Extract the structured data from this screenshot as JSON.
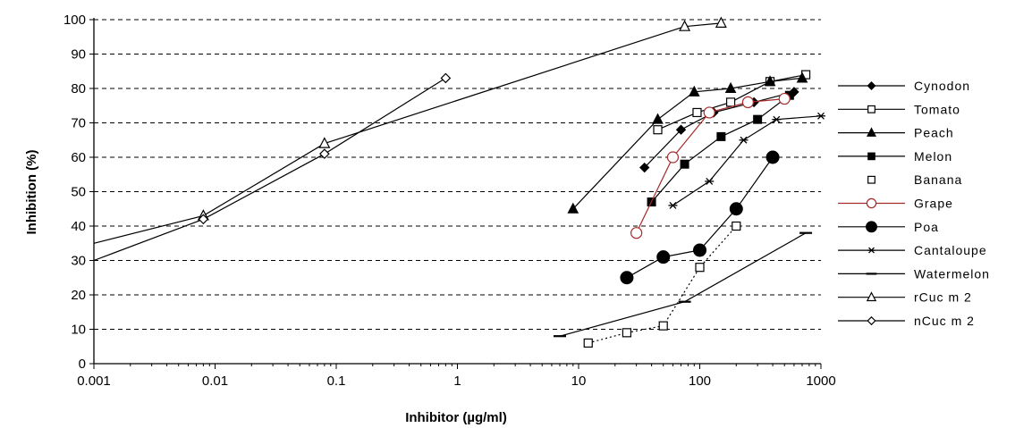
{
  "chart_data": {
    "type": "scatter",
    "title": "",
    "xlabel": "Inhibitor (µg/ml)",
    "ylabel": "Inhibition (%)",
    "x_scale": "log",
    "xlim": [
      0.001,
      1000
    ],
    "ylim": [
      0,
      100
    ],
    "x_ticks": [
      "0.001",
      "0.01",
      "0.1",
      "1",
      "10",
      "100",
      "1000"
    ],
    "y_ticks": [
      "0",
      "10",
      "20",
      "30",
      "40",
      "50",
      "60",
      "70",
      "80",
      "90",
      "100"
    ],
    "grid": "horizontal dashed",
    "legend_position": "right",
    "series": [
      {
        "name": "Cynodon",
        "marker": "diamond-filled",
        "line": "solid",
        "color": "#000000",
        "x": [
          35,
          70,
          130,
          280,
          600
        ],
        "y": [
          57,
          68,
          73,
          76,
          79
        ]
      },
      {
        "name": "Tomato",
        "marker": "square-open",
        "line": "solid",
        "color": "#000000",
        "x": [
          45,
          95,
          180,
          380,
          750
        ],
        "y": [
          68,
          73,
          76,
          82,
          84
        ]
      },
      {
        "name": "Peach",
        "marker": "triangle-filled",
        "line": "solid",
        "color": "#000000",
        "x": [
          9,
          45,
          90,
          180,
          380,
          700
        ],
        "y": [
          45,
          71,
          79,
          80,
          82,
          83
        ]
      },
      {
        "name": "Melon",
        "marker": "square-filled",
        "line": "solid",
        "color": "#000000",
        "x": [
          40,
          75,
          150,
          300,
          550
        ],
        "y": [
          47,
          58,
          66,
          71,
          78
        ]
      },
      {
        "name": "Banana",
        "marker": "square-open",
        "line": "dotted",
        "color": "#000000",
        "x": [
          12,
          25,
          50,
          100,
          200
        ],
        "y": [
          6,
          9,
          11,
          28,
          40
        ]
      },
      {
        "name": "Grape",
        "marker": "circle-open",
        "line": "solid",
        "color": "#a52a2a",
        "x": [
          30,
          60,
          120,
          250,
          500
        ],
        "y": [
          38,
          60,
          73,
          76,
          77
        ]
      },
      {
        "name": "Poa",
        "marker": "circle-filled",
        "line": "solid",
        "color": "#000000",
        "x": [
          25,
          50,
          100,
          200,
          400
        ],
        "y": [
          25,
          31,
          33,
          45,
          60
        ]
      },
      {
        "name": "Cantaloupe",
        "marker": "asterisk",
        "line": "solid",
        "color": "#000000",
        "x": [
          60,
          120,
          230,
          430,
          1000
        ],
        "y": [
          46,
          53,
          65,
          71,
          72
        ]
      },
      {
        "name": "Watermelon",
        "marker": "dash",
        "line": "solid",
        "color": "#000000",
        "x": [
          7,
          75,
          750
        ],
        "y": [
          8,
          18,
          38
        ]
      },
      {
        "name": "rCuc m 2",
        "marker": "triangle-open",
        "line": "solid",
        "color": "#000000",
        "x": [
          0.001,
          0.008,
          0.08,
          75,
          150
        ],
        "y": [
          35,
          43,
          64,
          98,
          99
        ]
      },
      {
        "name": "nCuc m 2",
        "marker": "diamond-open",
        "line": "solid",
        "color": "#000000",
        "x": [
          0.001,
          0.008,
          0.08,
          0.8
        ],
        "y": [
          30,
          42,
          61,
          83
        ]
      }
    ]
  }
}
